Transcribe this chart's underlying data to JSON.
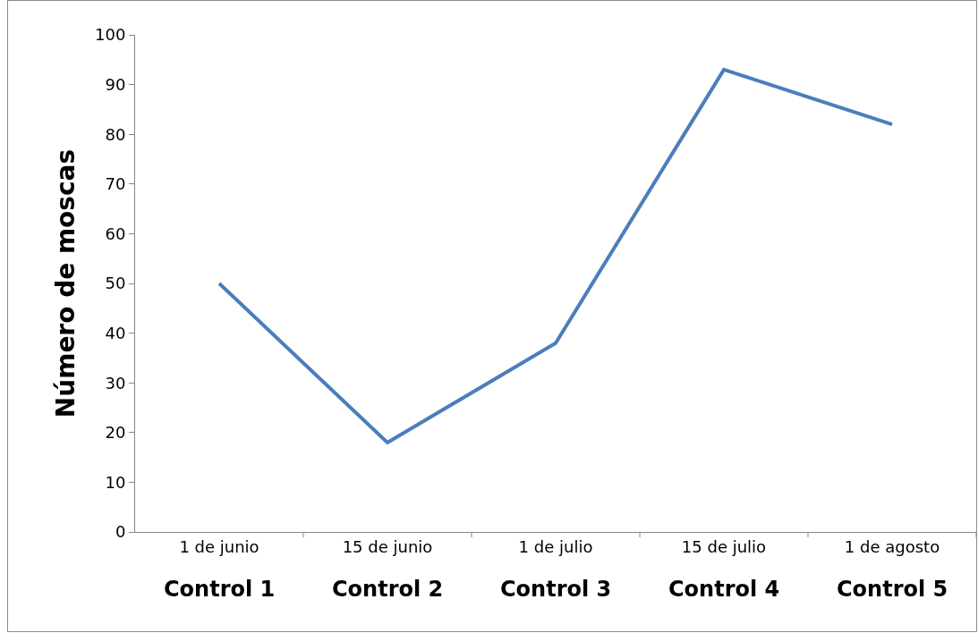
{
  "chart_data": {
    "type": "line",
    "ylabel": "Número de moscas",
    "categories": [
      "1 de junio",
      "15 de junio",
      "1 de julio",
      "15 de julio",
      "1 de agosto"
    ],
    "series": [
      {
        "color": "#4a7ebb",
        "values": [
          50,
          18,
          38,
          93,
          82
        ]
      }
    ],
    "annotations": [
      "Control 1",
      "Control 2",
      "Control 3",
      "Control 4",
      "Control 5"
    ],
    "ylim": [
      0,
      100
    ],
    "yticks": [
      0,
      10,
      20,
      30,
      40,
      50,
      60,
      70,
      80,
      90,
      100
    ],
    "line_style": "solid"
  }
}
